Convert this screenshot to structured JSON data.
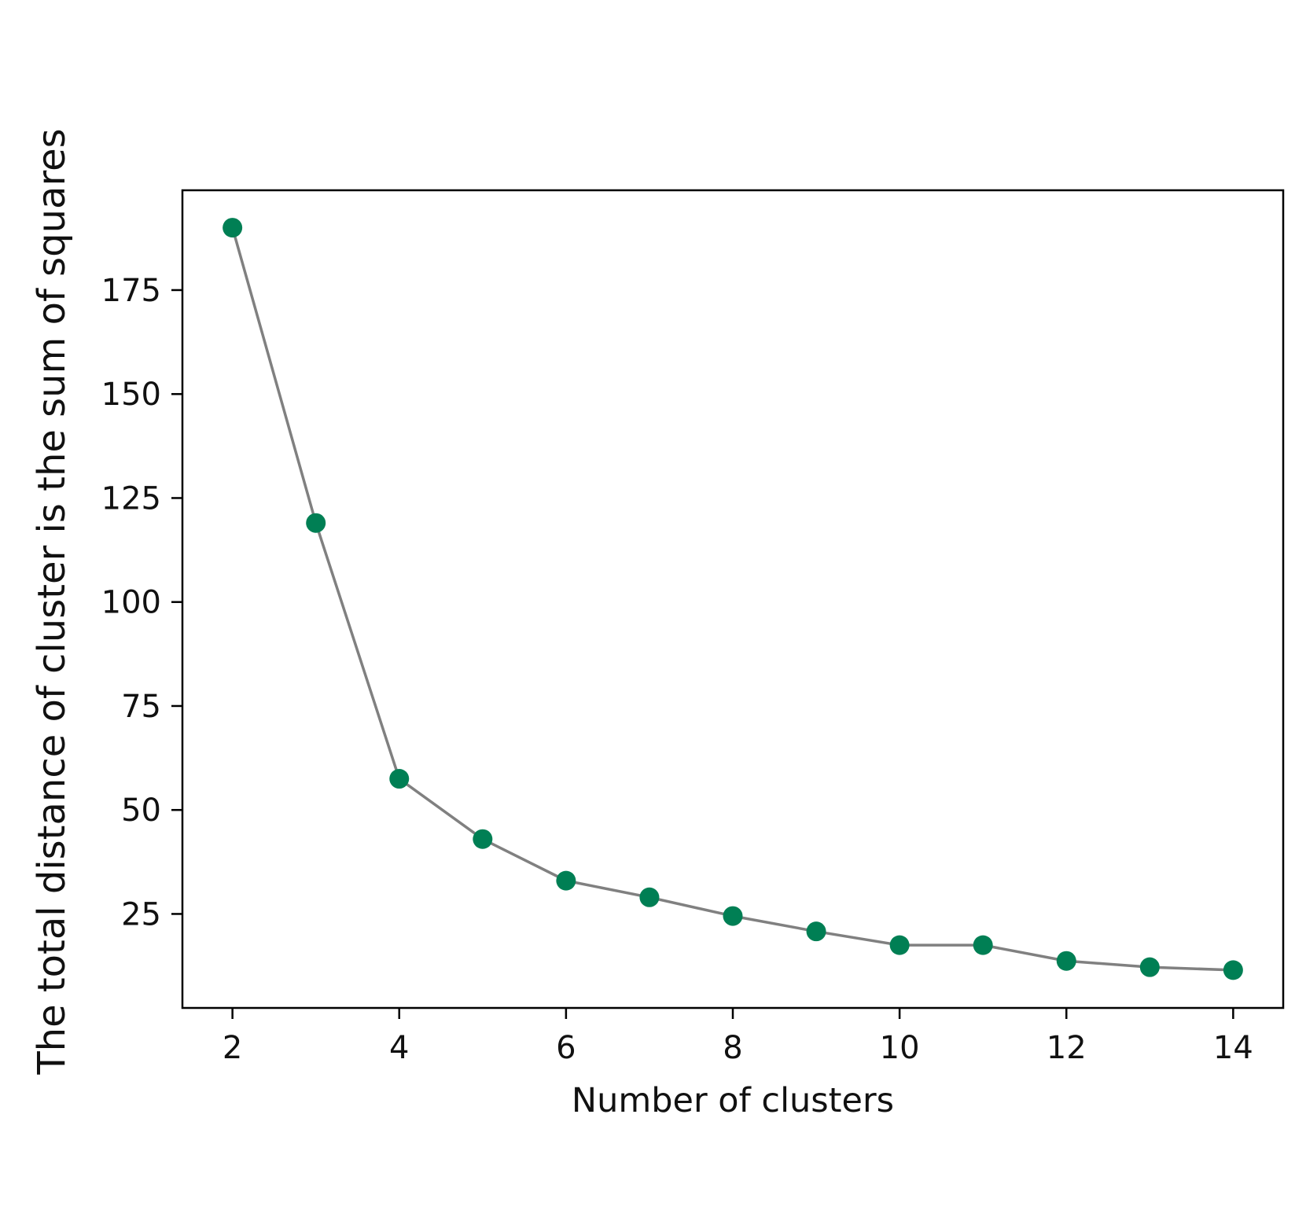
{
  "chart_data": {
    "type": "line",
    "xlabel": "Number of clusters",
    "ylabel": "The total distance of cluster is the sum of squares",
    "x": [
      2,
      3,
      4,
      5,
      6,
      7,
      8,
      9,
      10,
      11,
      12,
      13,
      14
    ],
    "series": [
      {
        "values": [
          190,
          119,
          57.5,
          43,
          33,
          29,
          24.5,
          20.8,
          17.5,
          17.5,
          13.7,
          12.2,
          11.5
        ]
      }
    ],
    "xticks": [
      "2",
      "4",
      "6",
      "8",
      "10",
      "12",
      "14"
    ],
    "xtick_values": [
      2,
      4,
      6,
      8,
      10,
      12,
      14
    ],
    "yticks": [
      "25",
      "50",
      "75",
      "100",
      "125",
      "150",
      "175"
    ],
    "ytick_values": [
      25,
      50,
      75,
      100,
      125,
      150,
      175
    ],
    "xlim": [
      1.4,
      14.6
    ],
    "ylim": [
      2.4,
      199
    ],
    "grid": false,
    "line_color": "#808080",
    "marker_color": "#007f54"
  }
}
